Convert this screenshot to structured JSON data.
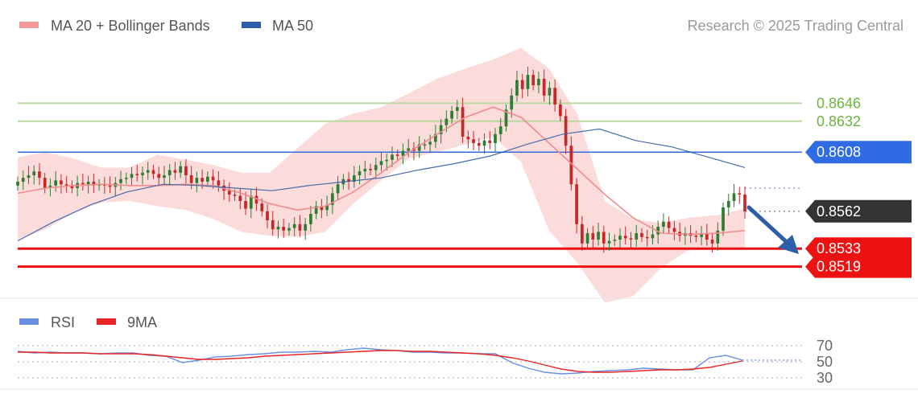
{
  "header": {
    "legend": [
      {
        "label": "MA 20 + Bollinger Bands",
        "color": "#f59a9a"
      },
      {
        "label": "MA 50",
        "color": "#2f5ea8"
      }
    ],
    "credit": "Research © 2025 Trading Central"
  },
  "rsi_legend": [
    {
      "label": "RSI",
      "color": "#6b8fe0"
    },
    {
      "label": "9MA",
      "color": "#e82424"
    }
  ],
  "colors": {
    "up_candle": "#2e7d32",
    "down_candle": "#c62828",
    "bollinger_fill": "#fbd5d5",
    "ma20": "#f08c8c",
    "ma50": "#2f5ea8",
    "resistance_green": "#b9d9a0",
    "resistance_text": "#6db33f",
    "pivot_blue": "#2f6be3",
    "support_red": "#ee1111",
    "last_price_bg": "#333333",
    "arrow": "#2f5ea8",
    "rsi_line": "#6b8fe0",
    "rsi_ma": "#e82424"
  },
  "chart_data": [
    {
      "type": "candlestick",
      "title": "",
      "y_range": [
        0.85,
        0.8695
      ],
      "levels": [
        {
          "value": 0.8646,
          "label": "0.8646",
          "kind": "resistance"
        },
        {
          "value": 0.8632,
          "label": "0.8632",
          "kind": "resistance"
        },
        {
          "value": 0.8608,
          "label": "0.8608",
          "kind": "pivot"
        },
        {
          "value": 0.8562,
          "label": "0.8562",
          "kind": "last"
        },
        {
          "value": 0.8533,
          "label": "0.8533",
          "kind": "support"
        },
        {
          "value": 0.8519,
          "label": "0.8519",
          "kind": "support"
        }
      ],
      "close_approx": [
        0.8585,
        0.8588,
        0.859,
        0.8593,
        0.8588,
        0.858,
        0.8582,
        0.8586,
        0.8583,
        0.8582,
        0.858,
        0.8584,
        0.8583,
        0.8585,
        0.8582,
        0.8583,
        0.8582,
        0.8581,
        0.8584,
        0.8587,
        0.8588,
        0.8591,
        0.859,
        0.8592,
        0.8594,
        0.8591,
        0.8588,
        0.859,
        0.8594,
        0.8592,
        0.8597,
        0.859,
        0.8584,
        0.8588,
        0.8585,
        0.8589,
        0.8586,
        0.8582,
        0.8578,
        0.8575,
        0.8574,
        0.857,
        0.8564,
        0.8574,
        0.8568,
        0.8562,
        0.8555,
        0.8548,
        0.855,
        0.8547,
        0.8549,
        0.8552,
        0.8547,
        0.8552,
        0.856,
        0.8566,
        0.8563,
        0.8567,
        0.8576,
        0.8583,
        0.8587,
        0.8585,
        0.859,
        0.8593,
        0.8595,
        0.8594,
        0.8598,
        0.8601,
        0.8602,
        0.8606,
        0.8605,
        0.8609,
        0.8611,
        0.8609,
        0.8614,
        0.8614,
        0.8616,
        0.8622,
        0.8629,
        0.8634,
        0.864,
        0.8643,
        0.862,
        0.8618,
        0.8615,
        0.8613,
        0.8617,
        0.8615,
        0.8622,
        0.8628,
        0.8641,
        0.8652,
        0.8664,
        0.8657,
        0.8668,
        0.866,
        0.8665,
        0.8652,
        0.8658,
        0.8645,
        0.8636,
        0.8613,
        0.8583,
        0.8552,
        0.8537,
        0.8545,
        0.854,
        0.8546,
        0.8537,
        0.8539,
        0.854,
        0.8543,
        0.8541,
        0.854,
        0.8545,
        0.8542,
        0.8541,
        0.8544,
        0.855,
        0.8554,
        0.8549,
        0.8546,
        0.8543,
        0.8545,
        0.8543,
        0.8542,
        0.8545,
        0.854,
        0.8537,
        0.8547,
        0.8565,
        0.857,
        0.8576,
        0.8575,
        0.8562
      ],
      "ma20_approx": [
        0.8576,
        0.858,
        0.8582,
        0.8583,
        0.8582,
        0.8582,
        0.8583,
        0.8582,
        0.8576,
        0.8568,
        0.8563,
        0.8566,
        0.8577,
        0.8592,
        0.8608,
        0.8622,
        0.8635,
        0.8643,
        0.8635,
        0.8615,
        0.8595,
        0.8575,
        0.8557,
        0.8545,
        0.8544,
        0.8545,
        0.8547
      ],
      "ma50_approx": [
        0.8539,
        0.8554,
        0.8567,
        0.8577,
        0.8583,
        0.8582,
        0.858,
        0.8578,
        0.8582,
        0.8585,
        0.8588,
        0.8594,
        0.8599,
        0.8605,
        0.8614,
        0.8622,
        0.8626,
        0.8617,
        0.8612,
        0.8604,
        0.8596
      ],
      "bb_upper_approx": [
        0.8604,
        0.8608,
        0.8603,
        0.8596,
        0.8596,
        0.8606,
        0.8602,
        0.8598,
        0.8592,
        0.8592,
        0.8611,
        0.863,
        0.8638,
        0.8643,
        0.8654,
        0.8665,
        0.8673,
        0.868,
        0.8689,
        0.8673,
        0.8638,
        0.857,
        0.8556,
        0.8553,
        0.8557,
        0.8559,
        0.8564
      ],
      "bb_lower_approx": [
        0.854,
        0.8548,
        0.8561,
        0.8569,
        0.857,
        0.8566,
        0.8563,
        0.8556,
        0.8546,
        0.8543,
        0.8542,
        0.8546,
        0.8568,
        0.8586,
        0.8603,
        0.8608,
        0.8614,
        0.862,
        0.86,
        0.8547,
        0.8522,
        0.8491,
        0.8496,
        0.8518,
        0.8532,
        0.8532,
        0.8532
      ]
    },
    {
      "type": "line",
      "title": "",
      "y_range": [
        25,
        75
      ],
      "y_ticks": [
        {
          "value": 70,
          "label": "70"
        },
        {
          "value": 50,
          "label": "50"
        },
        {
          "value": 30,
          "label": "30"
        }
      ],
      "series": [
        {
          "name": "RSI",
          "values": [
            63,
            61,
            62,
            61,
            61,
            60,
            61,
            61,
            58,
            57,
            49,
            52,
            56,
            57,
            59,
            60,
            62,
            62,
            63,
            62,
            65,
            67,
            65,
            64,
            62,
            62,
            61,
            61,
            60,
            60,
            49,
            42,
            37,
            35,
            36,
            38,
            39,
            40,
            42,
            41,
            40,
            40,
            55,
            58,
            52
          ]
        },
        {
          "name": "9MA",
          "values": [
            62,
            62,
            61,
            61,
            61,
            60,
            60,
            60,
            59,
            57,
            55,
            53,
            53,
            54,
            55,
            57,
            58,
            59,
            60,
            61,
            62,
            63,
            64,
            64,
            63,
            63,
            62,
            61,
            60,
            58,
            55,
            51,
            46,
            41,
            38,
            37,
            37,
            38,
            39,
            40,
            40,
            41,
            43,
            47,
            51
          ]
        }
      ]
    }
  ]
}
